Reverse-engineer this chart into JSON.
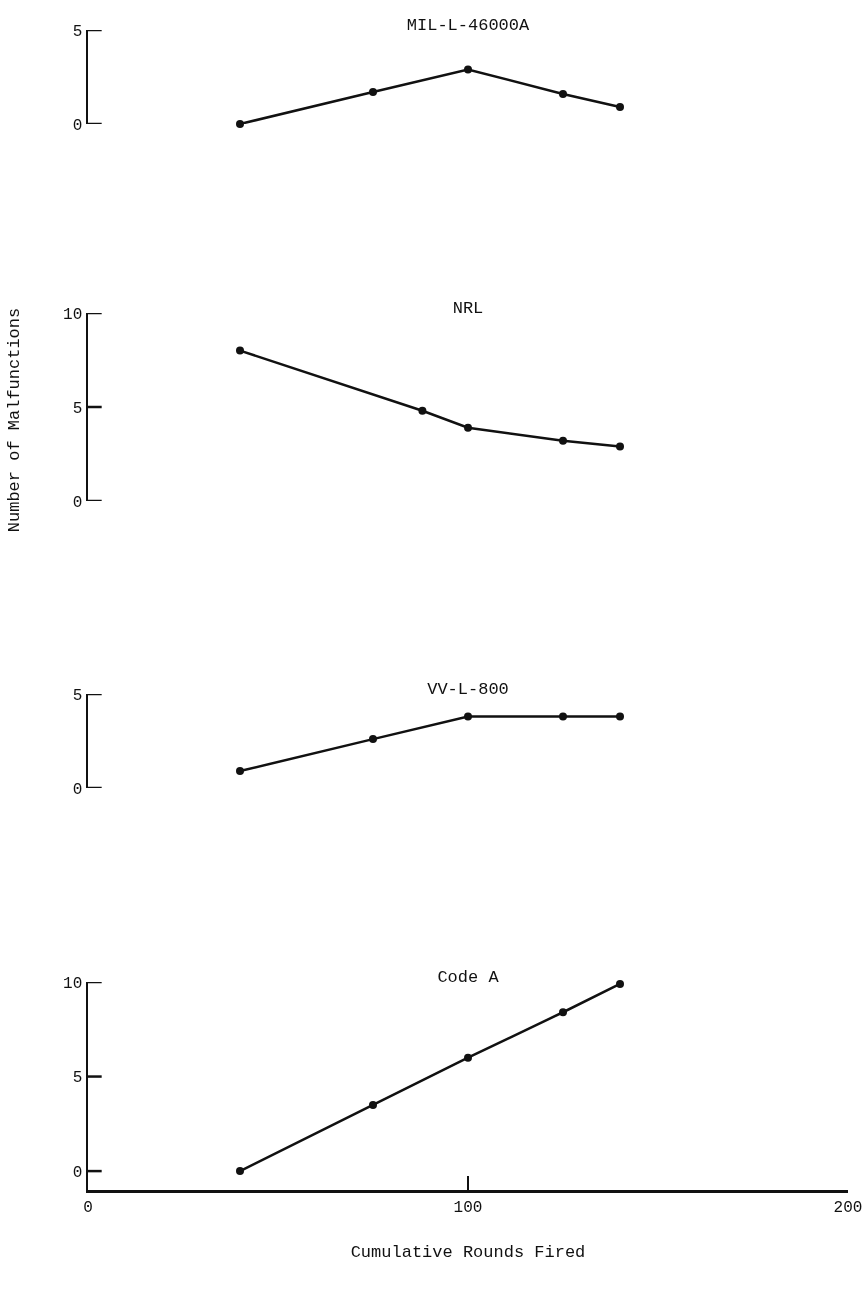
{
  "chart_data": [
    {
      "type": "line",
      "title": "MIL-L-46000A",
      "x": [
        40,
        75,
        100,
        125,
        140
      ],
      "values": [
        0,
        1.7,
        2.9,
        1.6,
        0.9
      ],
      "color": "#111111",
      "marker": "circle",
      "xlim": [
        0,
        200
      ],
      "ylim": [
        0,
        5
      ],
      "yticks": [
        0,
        5
      ],
      "tick_labels": "y"
    },
    {
      "type": "line",
      "title": "NRL",
      "ylabel": "Number of Malfunctions",
      "x": [
        40,
        88,
        100,
        125,
        140
      ],
      "values": [
        8.0,
        4.8,
        3.9,
        3.2,
        2.9
      ],
      "color": "#111111",
      "marker": "circle",
      "xlim": [
        0,
        200
      ],
      "ylim": [
        0,
        10
      ],
      "yticks": [
        0,
        5,
        10
      ],
      "tick_labels": "y"
    },
    {
      "type": "line",
      "title": "VV-L-800",
      "x": [
        40,
        75,
        100,
        125,
        140
      ],
      "values": [
        0.9,
        2.6,
        3.8,
        3.8,
        3.8
      ],
      "color": "#111111",
      "marker": "circle",
      "xlim": [
        0,
        200
      ],
      "ylim": [
        0,
        5
      ],
      "yticks": [
        0,
        5
      ],
      "tick_labels": "y"
    },
    {
      "type": "line",
      "title": "Code A",
      "xlabel": "Cumulative Rounds Fired",
      "x": [
        40,
        75,
        100,
        125,
        140
      ],
      "values": [
        0,
        3.5,
        6.0,
        8.4,
        9.9
      ],
      "color": "#111111",
      "marker": "circle",
      "xlim": [
        0,
        200
      ],
      "ylim": [
        -1,
        10
      ],
      "yticks": [
        0,
        5,
        10
      ],
      "xticks": [
        0,
        100,
        200
      ]
    }
  ]
}
